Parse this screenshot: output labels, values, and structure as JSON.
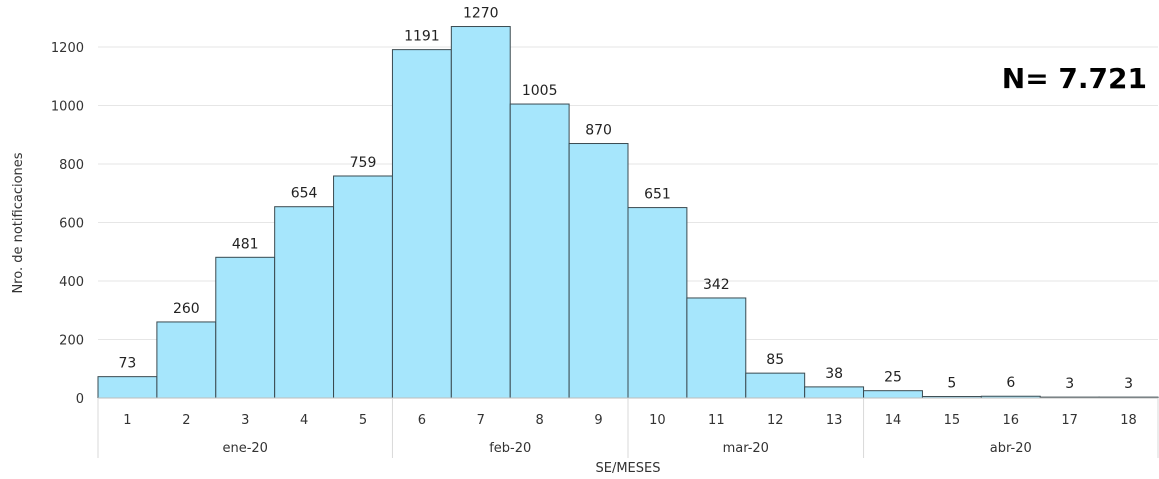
{
  "chart_data": {
    "type": "bar",
    "categories": [
      "1",
      "2",
      "3",
      "4",
      "5",
      "6",
      "7",
      "8",
      "9",
      "10",
      "11",
      "12",
      "13",
      "14",
      "15",
      "16",
      "17",
      "18"
    ],
    "values": [
      73,
      260,
      481,
      654,
      759,
      1191,
      1270,
      1005,
      870,
      651,
      342,
      85,
      38,
      25,
      5,
      6,
      3,
      3
    ],
    "month_groups": [
      {
        "label": "ene-20",
        "from": 0,
        "to": 4
      },
      {
        "label": "feb-20",
        "from": 5,
        "to": 8
      },
      {
        "label": "mar-20",
        "from": 9,
        "to": 12
      },
      {
        "label": "abr-20",
        "from": 13,
        "to": 17
      }
    ],
    "ylabel": "Nro. de notificaciones",
    "xlabel": "SE/MESES",
    "ylim": [
      0,
      1200
    ],
    "yticks": [
      0,
      200,
      400,
      600,
      800,
      1000,
      1200
    ],
    "grid": true,
    "bar_color": "#a6e6fc",
    "bar_stroke": "#3a4a50"
  },
  "annotation": "N= 7.721"
}
